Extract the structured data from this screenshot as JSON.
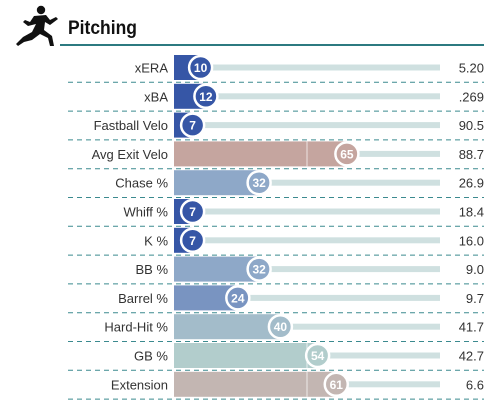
{
  "header": {
    "title": "Pitching",
    "icon": "pitcher-icon",
    "rule_color": "#2c7a80"
  },
  "chart_data": {
    "type": "bar",
    "orientation": "horizontal",
    "value_range": [
      0,
      100
    ],
    "grid": true,
    "legend": "none",
    "rows": [
      {
        "label": "xERA",
        "percentile": 10,
        "stat": "5.20",
        "color": "#3656a6"
      },
      {
        "label": "xBA",
        "percentile": 12,
        "stat": ".269",
        "color": "#3656a6"
      },
      {
        "label": "Fastball Velo",
        "percentile": 7,
        "stat": "90.5",
        "color": "#3656a6"
      },
      {
        "label": "Avg Exit Velo",
        "percentile": 65,
        "stat": "88.7",
        "color": "#c5a59f"
      },
      {
        "label": "Chase %",
        "percentile": 32,
        "stat": "26.9",
        "color": "#8ea8c8"
      },
      {
        "label": "Whiff %",
        "percentile": 7,
        "stat": "18.4",
        "color": "#3656a6"
      },
      {
        "label": "K %",
        "percentile": 7,
        "stat": "16.0",
        "color": "#3656a6"
      },
      {
        "label": "BB %",
        "percentile": 32,
        "stat": "9.0",
        "color": "#8ea8c8"
      },
      {
        "label": "Barrel %",
        "percentile": 24,
        "stat": "9.7",
        "color": "#7994c1"
      },
      {
        "label": "Hard-Hit %",
        "percentile": 40,
        "stat": "41.7",
        "color": "#a3bcca"
      },
      {
        "label": "GB %",
        "percentile": 54,
        "stat": "42.7",
        "color": "#b2cdcc"
      },
      {
        "label": "Extension",
        "percentile": 61,
        "stat": "6.6",
        "color": "#c3b6b2"
      }
    ]
  }
}
